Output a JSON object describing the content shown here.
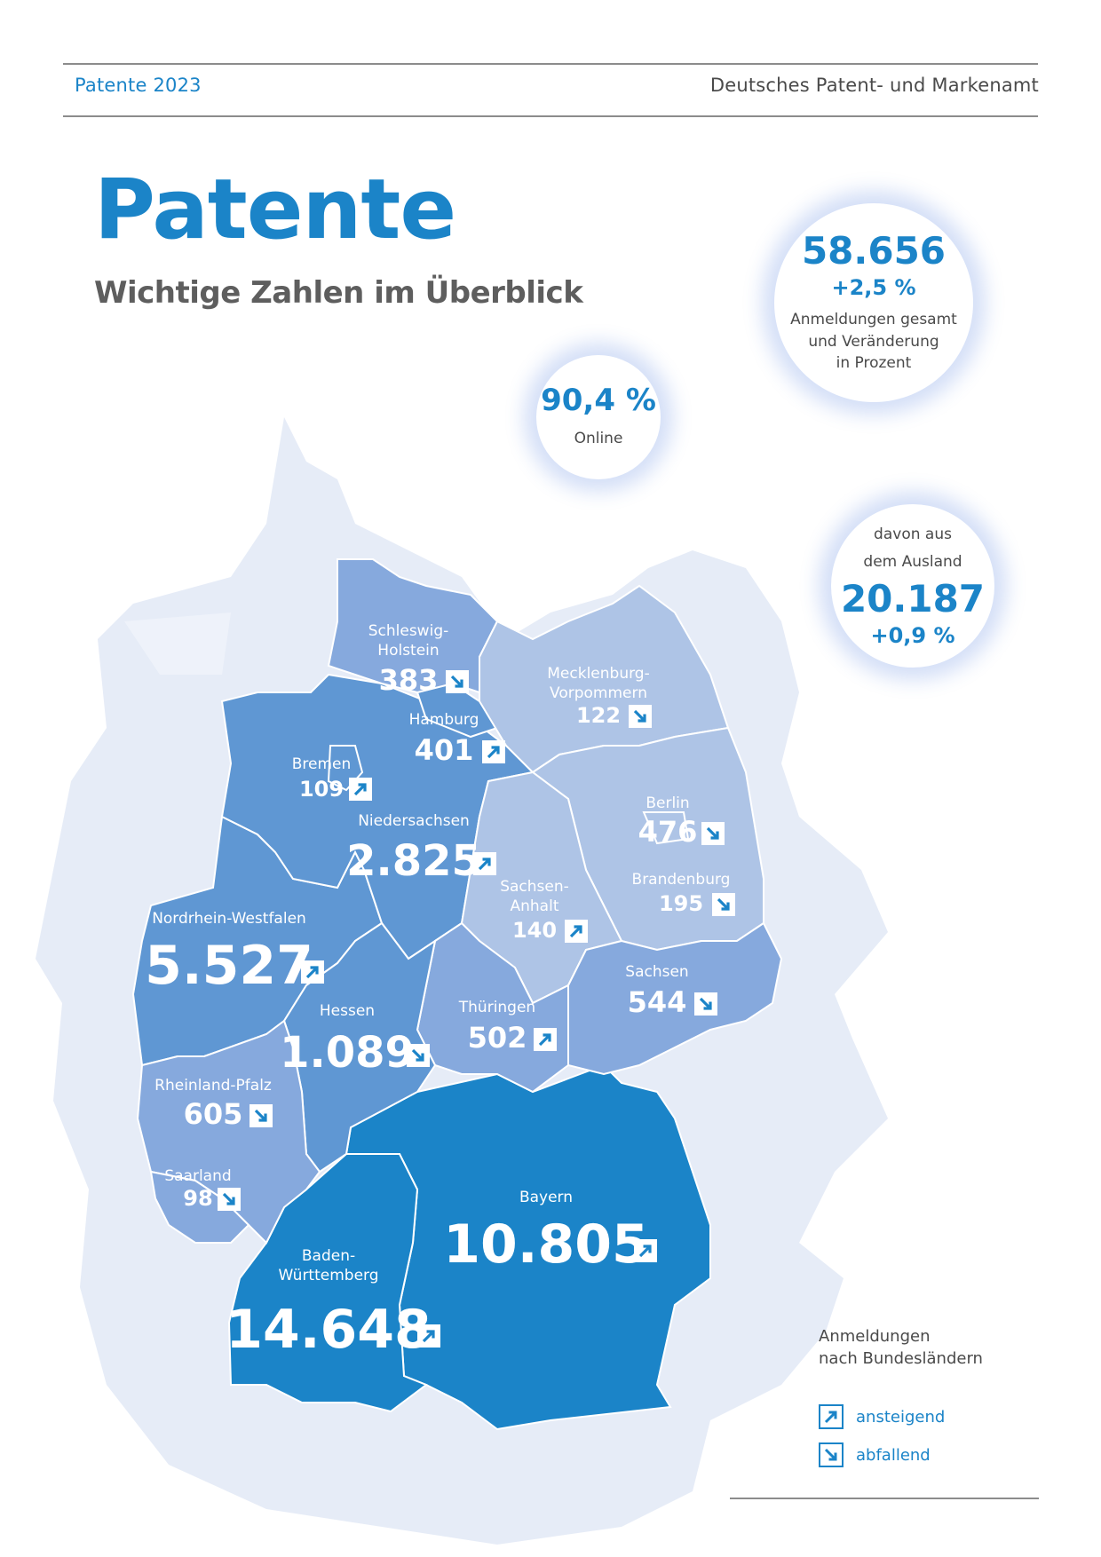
{
  "header": {
    "left": "Patente 2023",
    "right": "Deutsches Patent- und Markenamt"
  },
  "title": "Patente",
  "subtitle": "Wichtige Zahlen im Überblick",
  "bubbles": {
    "total": {
      "value": "58.656",
      "change": "+2,5 %",
      "label_line1": "Anmeldungen gesamt",
      "label_line2": "und Veränderung",
      "label_line3": "in Prozent"
    },
    "online": {
      "value": "90,4 %",
      "label": "Online"
    },
    "abroad": {
      "label_line1": "davon aus",
      "label_line2": "dem Ausland",
      "value": "20.187",
      "change": "+0,9 %"
    }
  },
  "states": {
    "sh": {
      "name1": "Schleswig-",
      "name2": "Holstein",
      "value": "383",
      "trend": "down"
    },
    "hh": {
      "name": "Hamburg",
      "value": "401",
      "trend": "up"
    },
    "mv": {
      "name1": "Mecklenburg-",
      "name2": "Vorpommern",
      "value": "122",
      "trend": "down"
    },
    "hb": {
      "name": "Bremen",
      "value": "109",
      "trend": "up"
    },
    "ni": {
      "name": "Niedersachsen",
      "value": "2.825",
      "trend": "up"
    },
    "be": {
      "name": "Berlin",
      "value": "476",
      "trend": "down"
    },
    "bb": {
      "name": "Brandenburg",
      "value": "195",
      "trend": "down"
    },
    "st": {
      "name1": "Sachsen-",
      "name2": "Anhalt",
      "value": "140",
      "trend": "up"
    },
    "nw": {
      "name": "Nordrhein-Westfalen",
      "value": "5.527",
      "trend": "up"
    },
    "sn": {
      "name": "Sachsen",
      "value": "544",
      "trend": "down"
    },
    "he": {
      "name": "Hessen",
      "value": "1.089",
      "trend": "down"
    },
    "th": {
      "name": "Thüringen",
      "value": "502",
      "trend": "up"
    },
    "rp": {
      "name": "Rheinland-Pfalz",
      "value": "605",
      "trend": "down"
    },
    "sl": {
      "name": "Saarland",
      "value": "98",
      "trend": "down"
    },
    "by": {
      "name": "Bayern",
      "value": "10.805",
      "trend": "up"
    },
    "bw": {
      "name1": "Baden-",
      "name2": "Württemberg",
      "value": "14.648",
      "trend": "up"
    }
  },
  "legend": {
    "title_line1": "Anmeldungen",
    "title_line2": "nach Bundesländern",
    "up_label": "ansteigend",
    "down_label": "abfallend",
    "up_icon": "arrow-up-right-icon",
    "down_icon": "arrow-down-right-icon"
  },
  "colors": {
    "accent": "#1b84c8",
    "highest": "#1b84c8",
    "high": "#5f97d3",
    "medium": "#86a9dd",
    "low": "#aec4e6",
    "background_land": "#e6ecf7"
  }
}
